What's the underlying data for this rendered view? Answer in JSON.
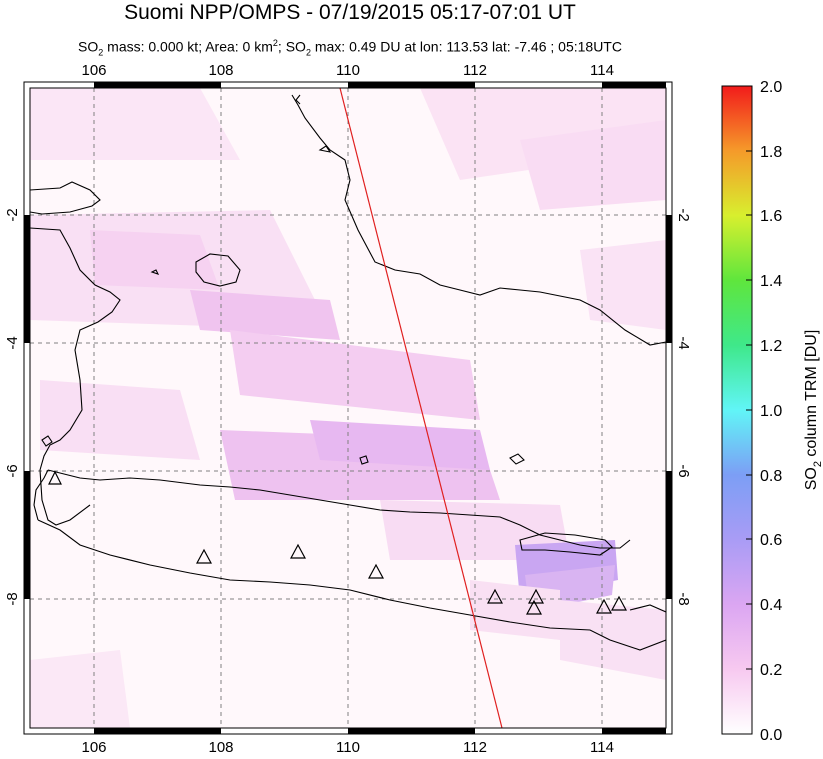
{
  "header": {
    "title": "Suomi NPP/OMPS - 07/19/2015 05:17-07:01 UT",
    "subtitle_parts": {
      "p1": "SO",
      "p1_sub": "2",
      "p2": " mass: 0.000 kt; Area: 0 km",
      "p2_sup": "2",
      "p3": "; SO",
      "p3_sub": "2",
      "p4": " max: 0.49 DU at lon: 113.53 lat: -7.46 ; 05:18UTC"
    }
  },
  "map": {
    "lon_ticks": [
      "106",
      "108",
      "110",
      "112",
      "114"
    ],
    "lat_ticks": [
      "-2",
      "-4",
      "-6",
      "-8"
    ],
    "lon_range": [
      105,
      115
    ],
    "lat_range": [
      -10,
      0
    ]
  },
  "colorbar": {
    "label": "SO2 column TRM [DU]",
    "label_parts": {
      "a": "SO",
      "sub": "2",
      "b": " column TRM [DU]"
    },
    "ticks": [
      "2.0",
      "1.8",
      "1.6",
      "1.4",
      "1.2",
      "1.0",
      "0.8",
      "0.6",
      "0.4",
      "0.2",
      "0.0"
    ],
    "min": 0.0,
    "max": 2.0,
    "colors": [
      "#ffffff",
      "#f7c9f0",
      "#c89cf5",
      "#7c9cf5",
      "#61f5f7",
      "#3fe88a",
      "#48e63d",
      "#d8ef2e",
      "#f5bf2c",
      "#f57626",
      "#f21b1b"
    ]
  },
  "volcano_markers": 10,
  "orbit_line_color": "#e02020"
}
